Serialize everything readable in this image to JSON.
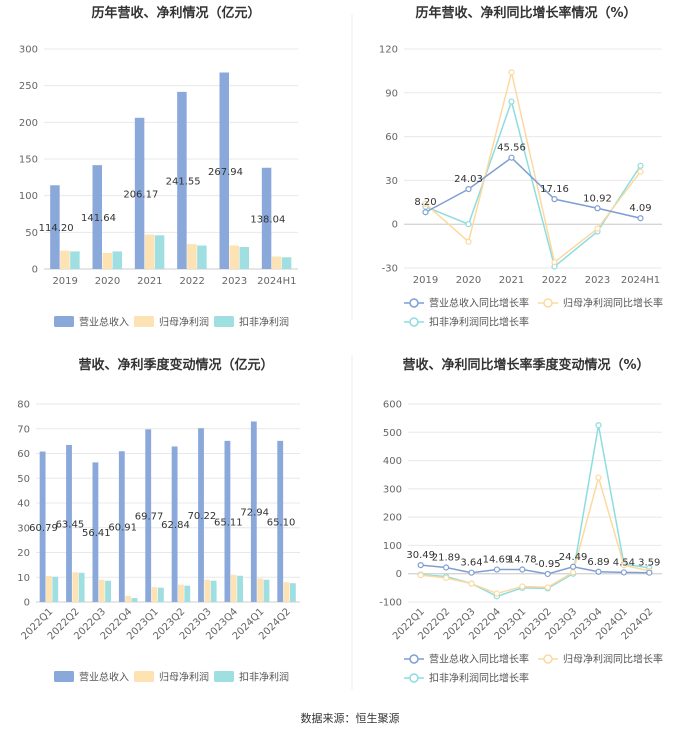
{
  "source_text": "数据来源：恒生聚源",
  "colors": {
    "revenue": "#8aa9da",
    "net_profit": "#fde2b4",
    "deducted_profit": "#9fdfe2",
    "grid": "#e8e8e8",
    "axis": "#cccccc"
  },
  "chart_data": [
    {
      "type": "bar",
      "title": "历年营收、净利情况（亿元）",
      "categories": [
        "2019",
        "2020",
        "2021",
        "2022",
        "2023",
        "2024H1"
      ],
      "ylim": [
        0,
        300
      ],
      "yticks": [
        0,
        50,
        100,
        150,
        200,
        250,
        300
      ],
      "label_series": 0,
      "series": [
        {
          "name": "营业总收入",
          "color": "#8aa9da",
          "values": [
            114.2,
            141.64,
            206.17,
            241.55,
            267.94,
            138.04
          ],
          "labels": [
            "114.20",
            "141.64",
            "206.17",
            "241.55",
            "267.94",
            "138.04"
          ]
        },
        {
          "name": "归母净利润",
          "color": "#fde2b4",
          "values": [
            25,
            22,
            47,
            34,
            32,
            17
          ]
        },
        {
          "name": "扣非净利润",
          "color": "#9fdfe2",
          "values": [
            24,
            24,
            46,
            32,
            30,
            16
          ]
        }
      ]
    },
    {
      "type": "line",
      "title": "历年营收、净利同比增长率情况（%）",
      "categories": [
        "2019",
        "2020",
        "2021",
        "2022",
        "2023",
        "2024H1"
      ],
      "ylim": [
        -30,
        120
      ],
      "yticks": [
        -30,
        0,
        30,
        60,
        90,
        120
      ],
      "label_series": 0,
      "series": [
        {
          "name": "营业总收入同比增长率",
          "color": "#7f9fd3",
          "values": [
            8.2,
            24.03,
            45.56,
            17.16,
            10.92,
            4.09
          ],
          "labels": [
            "8.20",
            "24.03",
            "45.56",
            "17.16",
            "10.92",
            "4.09"
          ]
        },
        {
          "name": "归母净利润同比增长率",
          "color": "#fdd9a0",
          "values": [
            14,
            -12,
            104,
            -26,
            -3,
            36
          ]
        },
        {
          "name": "扣非净利润同比增长率",
          "color": "#8ddde0",
          "values": [
            12,
            0,
            84,
            -29,
            -5,
            40
          ]
        }
      ]
    },
    {
      "type": "bar",
      "title": "营收、净利季度变动情况（亿元）",
      "categories": [
        "2022Q1",
        "2022Q2",
        "2022Q3",
        "2022Q4",
        "2023Q1",
        "2023Q2",
        "2023Q3",
        "2023Q4",
        "2024Q1",
        "2024Q2"
      ],
      "ylim": [
        0,
        80
      ],
      "yticks": [
        0,
        10,
        20,
        30,
        40,
        50,
        60,
        70,
        80
      ],
      "label_series": 0,
      "series": [
        {
          "name": "营业总收入",
          "color": "#8aa9da",
          "values": [
            60.79,
            63.45,
            56.41,
            60.91,
            69.77,
            62.84,
            70.22,
            65.11,
            72.94,
            65.1
          ],
          "labels": [
            "60.79",
            "63.45",
            "56.41",
            "60.91",
            "69.77",
            "62.84",
            "70.22",
            "65.11",
            "72.94",
            "65.10"
          ]
        },
        {
          "name": "归母净利润",
          "color": "#fde2b4",
          "values": [
            10.5,
            12,
            9,
            2.5,
            6,
            7,
            9,
            11,
            9.5,
            8
          ]
        },
        {
          "name": "扣非净利润",
          "color": "#9fdfe2",
          "values": [
            10.2,
            11.8,
            8.6,
            1.6,
            5.8,
            6.6,
            8.6,
            10.6,
            9,
            7.6
          ]
        }
      ]
    },
    {
      "type": "line",
      "title": "营收、净利同比增长率季度变动情况（%）",
      "categories": [
        "2022Q1",
        "2022Q2",
        "2022Q3",
        "2022Q4",
        "2023Q1",
        "2023Q2",
        "2023Q3",
        "2023Q4",
        "2024Q1",
        "2024Q2"
      ],
      "ylim": [
        -100,
        600
      ],
      "yticks": [
        -100,
        0,
        100,
        200,
        300,
        400,
        500,
        600
      ],
      "label_series": 0,
      "series": [
        {
          "name": "营业总收入同比增长率",
          "color": "#7f9fd3",
          "values": [
            30.49,
            21.89,
            3.64,
            14.69,
            14.78,
            -0.95,
            24.49,
            6.89,
            4.54,
            3.59
          ],
          "labels": [
            "30.49",
            "21.89",
            "3.64",
            "14.69",
            "14.78",
            "-0.95",
            "24.49",
            "6.89",
            "4.54",
            "3.59"
          ]
        },
        {
          "name": "归母净利润同比增长率",
          "color": "#fdd9a0",
          "values": [
            -5,
            -15,
            -35,
            -70,
            -45,
            -48,
            5,
            340,
            30,
            10
          ]
        },
        {
          "name": "扣非净利润同比增长率",
          "color": "#8ddde0",
          "values": [
            -3,
            -10,
            -35,
            -80,
            -50,
            -52,
            0,
            525,
            35,
            20
          ]
        }
      ]
    }
  ]
}
